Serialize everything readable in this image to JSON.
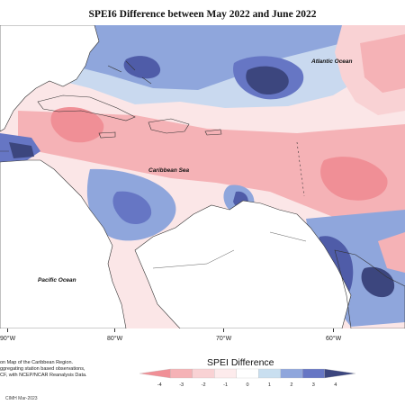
{
  "title": "SPEI6 Difference between May 2022 and June 2022",
  "map_labels": {
    "atlantic": "Atlantic Ocean",
    "caribbean": "Caribbean Sea",
    "pacific": "Pacific Ocean"
  },
  "longitude_ticks": [
    "90°W",
    "80°W",
    "70°W",
    "60°W"
  ],
  "legend": {
    "title": "SPEI Difference",
    "ticks": [
      "-4",
      "-3",
      "-2",
      "-1",
      "0",
      "1",
      "2",
      "3",
      "4"
    ],
    "colors": [
      "#f08f96",
      "#f5b2b6",
      "#f9d2d4",
      "#fdebec",
      "#ffffff",
      "#c9dff0",
      "#8fa6dc",
      "#6676c4",
      "#3c467e"
    ]
  },
  "description_lines": [
    "on Map of the Caribbean Region.",
    "ggregating station based observations,",
    "CF, with NCEP/NCAR Reanalysis Data."
  ],
  "credit": "CIMH Mar-2023"
}
